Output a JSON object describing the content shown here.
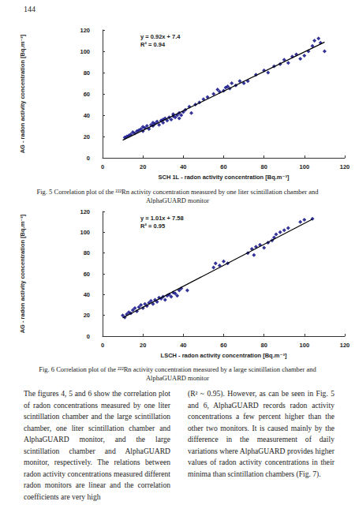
{
  "page_number": "144",
  "chart_data": [
    {
      "type": "scatter",
      "xlabel": "SCH 1L - radon activity concentration [Bq.m⁻³]",
      "ylabel": "AG - radon activity concentration [Bq.m⁻³]",
      "annotations": [
        "y = 0.92x + 7.4",
        "R² = 0.94"
      ],
      "x": [
        11,
        12,
        13,
        14,
        15,
        16,
        17,
        18,
        19,
        20,
        20,
        21,
        22,
        23,
        24,
        25,
        25,
        26,
        27,
        28,
        29,
        30,
        30,
        31,
        32,
        33,
        34,
        35,
        35,
        36,
        37,
        38,
        38,
        39,
        40,
        41,
        43,
        44,
        46,
        48,
        50,
        52,
        55,
        57,
        58,
        60,
        61,
        62,
        63,
        64,
        66,
        68,
        70,
        72,
        76,
        80,
        82,
        85,
        88,
        90,
        92,
        94,
        96,
        98,
        100,
        102,
        104,
        105,
        107,
        108,
        110
      ],
      "values": [
        19,
        20,
        21,
        22,
        24,
        23,
        25,
        26,
        27,
        25,
        29,
        28,
        30,
        27,
        31,
        30,
        33,
        32,
        34,
        31,
        35,
        33,
        36,
        37,
        35,
        38,
        36,
        39,
        41,
        38,
        40,
        37,
        42,
        40,
        43,
        45,
        48,
        42,
        50,
        52,
        55,
        57,
        60,
        64,
        62,
        63,
        66,
        67,
        65,
        70,
        68,
        72,
        70,
        72,
        78,
        82,
        80,
        86,
        88,
        92,
        89,
        95,
        97,
        93,
        96,
        100,
        105,
        110,
        112,
        108,
        100
      ],
      "trendline": {
        "x": [
          10,
          110
        ],
        "y": [
          16.6,
          108.6
        ]
      },
      "color": "#000080",
      "marker": "diamond",
      "xlim": [
        0,
        120
      ],
      "xticks": [
        0,
        20,
        40,
        60,
        80,
        100,
        120
      ],
      "ylim": [
        0,
        120
      ],
      "yticks": [
        0,
        20,
        40,
        60,
        80,
        100,
        120
      ],
      "grid": false
    },
    {
      "type": "scatter",
      "xlabel": "LSCH - radon activity concentration [Bq.m⁻³]",
      "ylabel": "AG - radon activity concentration [Bq.m⁻³]",
      "annotations": [
        "y = 1.01x + 7.58",
        "R² = 0.95"
      ],
      "x": [
        10,
        11,
        12,
        13,
        14,
        15,
        16,
        17,
        18,
        19,
        20,
        21,
        22,
        23,
        24,
        25,
        26,
        27,
        28,
        29,
        30,
        31,
        32,
        33,
        34,
        35,
        36,
        37,
        38,
        39,
        42,
        55,
        56,
        58,
        60,
        62,
        72,
        74,
        75,
        76,
        78,
        80,
        82,
        84,
        85,
        86,
        88,
        90,
        92,
        98,
        100,
        104
      ],
      "values": [
        20,
        18,
        21,
        23,
        22,
        25,
        27,
        24,
        28,
        30,
        27,
        31,
        29,
        32,
        34,
        31,
        35,
        33,
        37,
        36,
        38,
        35,
        39,
        40,
        38,
        42,
        41,
        39,
        44,
        46,
        44,
        66,
        70,
        68,
        72,
        70,
        80,
        84,
        78,
        86,
        88,
        85,
        90,
        92,
        95,
        98,
        100,
        102,
        104,
        110,
        112,
        113
      ],
      "trendline": {
        "x": [
          10,
          104
        ],
        "y": [
          17.68,
          112.62
        ]
      },
      "color": "#000080",
      "marker": "diamond",
      "xlim": [
        0,
        120
      ],
      "xticks": [
        0,
        20,
        40,
        60,
        80,
        100,
        120
      ],
      "ylim": [
        0,
        120
      ],
      "yticks": [
        0,
        20,
        40,
        60,
        80,
        100,
        120
      ],
      "grid": false
    }
  ],
  "captions": [
    "Fig. 5 Correlation plot of the ²²²Rn activity concentration measured by one liter scintillation chamber and AlphaGUARD monitor",
    "Fig. 6 Correlation plot of the ²²²Rn activity concentration measured by a large scintillation chamber and AlphaGUARD monitor"
  ],
  "columns": [
    "The figures 4, 5 and 6 show the correlation plot of radon concentrations measured by one liter scintillation chamber and the large scintillation chamber, one liter scintillation chamber and AlphaGUARD monitor, and the large scintillation chamber and AlphaGUARD monitor, respectively. The relations between radon activity concentrations measured different radon monitors are linear and the correlation coefficients are very high",
    "(R² ~ 0.95). However, as can be seen in Fig. 5 and 6, AlphaGUARD records radon activity concentrations a few percent higher than the other two monitors. It is caused mainly by the difference in the measurement of daily variations where AlphaGUARD provides higher values of radon activity concentrations in their minima than scintillation chambers (Fig. 7)."
  ]
}
